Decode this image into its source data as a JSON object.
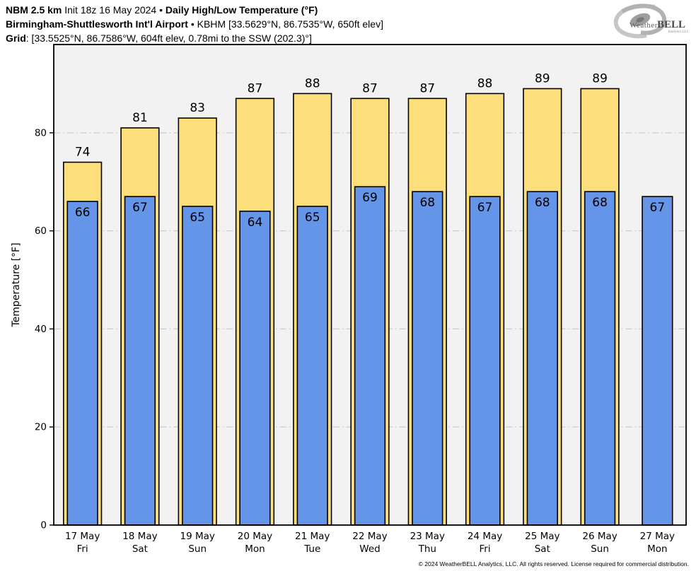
{
  "header": {
    "line1": {
      "model": "NBM 2.5 km",
      "init": "Init 18z 16 May 2024",
      "sep": "•",
      "title": "Daily High/Low Temperature (°F)"
    },
    "line2": {
      "station": "Birmingham-Shuttlesworth Int'l Airport",
      "sep": "•",
      "details": "KBHM [33.5629°N, 86.7535°W, 650ft elev]"
    },
    "line3": {
      "label": "Grid",
      "value": ": [33.5525°N, 86.7586°W, 604ft elev, 0.78mi to the SSW (202.3)°]"
    }
  },
  "logo": {
    "name_regular": "Weather",
    "name_bold": "BELL",
    "sub": "Analytics LLC"
  },
  "footer": {
    "copyright": "© 2024 WeatherBELL Analytics, LLC. All rights reserved. License required for commercial distribution."
  },
  "chart_data": {
    "type": "bar",
    "title": "Daily High/Low Temperature (°F)",
    "xlabel": "",
    "ylabel": "Temperature [°F]",
    "ylim": [
      0,
      98
    ],
    "yticks": [
      0,
      20,
      40,
      60,
      80
    ],
    "grid": true,
    "legend": "none",
    "plot_bg": "#f2f2f2",
    "gridline_color": "#c8c8c8",
    "categories": [
      {
        "date": "17 May",
        "day": "Fri"
      },
      {
        "date": "18 May",
        "day": "Sat"
      },
      {
        "date": "19 May",
        "day": "Sun"
      },
      {
        "date": "20 May",
        "day": "Mon"
      },
      {
        "date": "21 May",
        "day": "Tue"
      },
      {
        "date": "22 May",
        "day": "Wed"
      },
      {
        "date": "23 May",
        "day": "Thu"
      },
      {
        "date": "24 May",
        "day": "Fri"
      },
      {
        "date": "25 May",
        "day": "Sat"
      },
      {
        "date": "26 May",
        "day": "Sun"
      },
      {
        "date": "27 May",
        "day": "Mon"
      }
    ],
    "series": [
      {
        "name": "High",
        "color": "#fcdf7a",
        "edge_color": "#000000",
        "values": [
          74,
          81,
          83,
          87,
          88,
          87,
          87,
          88,
          89,
          89,
          null
        ]
      },
      {
        "name": "Low",
        "color": "#6495e8",
        "edge_color": "#000000",
        "values": [
          66,
          67,
          65,
          64,
          65,
          69,
          68,
          67,
          68,
          68,
          67
        ]
      }
    ]
  }
}
